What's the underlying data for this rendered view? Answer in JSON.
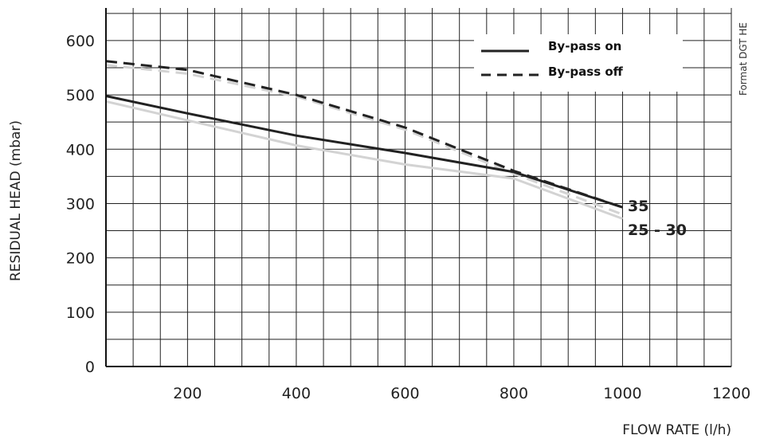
{
  "chart_data": {
    "type": "line",
    "xlabel": "FLOW RATE (l/h)",
    "ylabel": "RESIDUAL HEAD (mbar)",
    "xlim": [
      50,
      1200
    ],
    "ylim": [
      0,
      660
    ],
    "x_ticks": [
      200,
      400,
      600,
      800,
      1000,
      1200
    ],
    "y_ticks": [
      0,
      100,
      200,
      300,
      400,
      500,
      600
    ],
    "x_grid_step": 50,
    "y_grid_step": 50,
    "grid": true,
    "legend_position": "top-right",
    "side_note": "Format DGT HE",
    "legend": [
      {
        "label": "By-pass on",
        "style": "solid"
      },
      {
        "label": "By-pass off",
        "style": "dashed"
      }
    ],
    "series": [
      {
        "name": "35",
        "bypass": "on",
        "style": "solid",
        "color": "#222222",
        "x": [
          50,
          200,
          400,
          600,
          800,
          1000
        ],
        "y": [
          498,
          466,
          425,
          393,
          358,
          293
        ]
      },
      {
        "name": "25 - 30",
        "bypass": "on",
        "style": "solid",
        "color": "#d3d3d3",
        "x": [
          50,
          200,
          400,
          600,
          800,
          1000
        ],
        "y": [
          488,
          453,
          407,
          372,
          346,
          272
        ]
      },
      {
        "name": "35",
        "bypass": "off",
        "style": "dashed",
        "color": "#222222",
        "x": [
          50,
          200,
          400,
          600,
          800,
          1000
        ],
        "y": [
          562,
          546,
          500,
          440,
          360,
          293
        ]
      },
      {
        "name": "25 - 30",
        "bypass": "off",
        "style": "dashed",
        "color": "#d3d3d3",
        "x": [
          50,
          200,
          400,
          600,
          800,
          1000
        ],
        "y": [
          555,
          539,
          497,
          436,
          355,
          280
        ]
      }
    ],
    "series_labels": [
      "35",
      "25 - 30"
    ]
  }
}
